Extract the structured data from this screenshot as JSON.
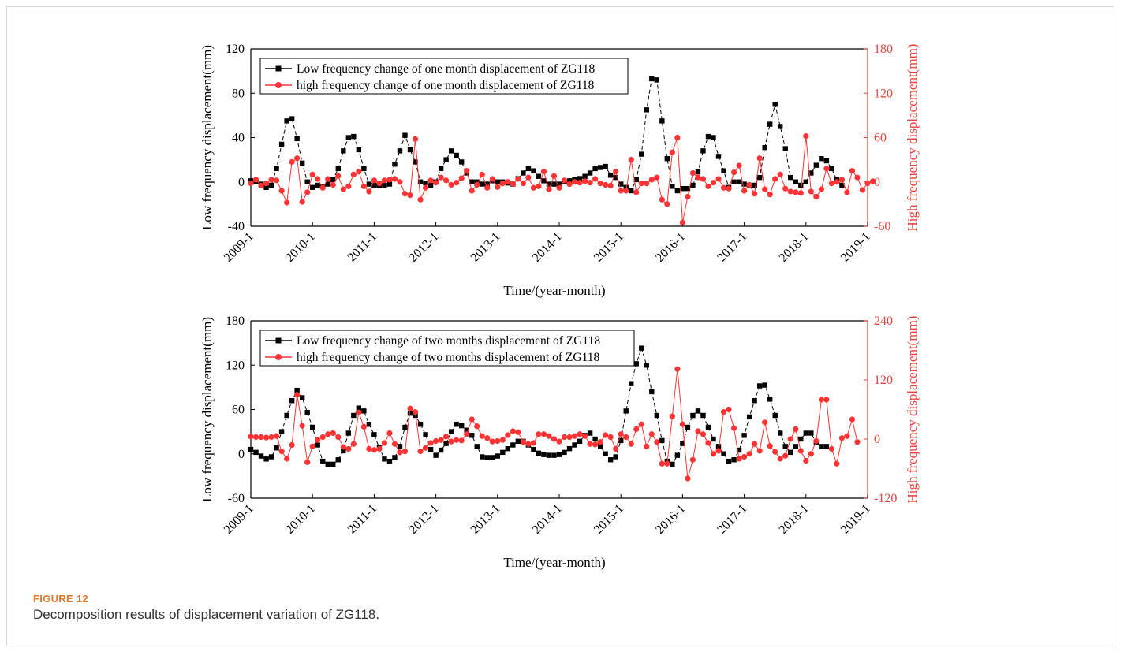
{
  "figure": {
    "label": "FIGURE 12",
    "caption": "Decomposition results of displacement variation of ZG118."
  },
  "colors": {
    "low": "#000000",
    "high": "#ff3333",
    "axis_right": "#e8443a"
  },
  "chart_data": [
    {
      "type": "line",
      "id": "one_month",
      "xlabel": "Time/(year-month)",
      "ylabel": "Low frequency displacement(mm)",
      "ylabel_right": "High frequency displacement(mm)",
      "ylim": [
        -40,
        120
      ],
      "yticks": [
        -40,
        0,
        40,
        80,
        120
      ],
      "ylim_right": [
        -60,
        180
      ],
      "yticks_right": [
        -60,
        0,
        60,
        120,
        180
      ],
      "xlim": [
        0,
        120
      ],
      "xticks": [
        0,
        12,
        24,
        36,
        48,
        60,
        72,
        84,
        96,
        108,
        120
      ],
      "xtick_labels": [
        "2009-1",
        "2010-1",
        "2011-1",
        "2012-1",
        "2013-1",
        "2014-1",
        "2015-1",
        "2016-1",
        "2017-1",
        "2018-1",
        "2019-1"
      ],
      "legend_position": "top-left",
      "series": [
        {
          "name": "Low frequency change of one month displacement of ZG118",
          "axis": "left",
          "marker": "square",
          "values": [
            1,
            0,
            -2,
            -5,
            -3,
            12,
            34,
            55,
            57,
            39,
            17,
            0,
            -5,
            -3,
            -4,
            -2,
            2,
            12,
            28,
            40,
            41,
            29,
            12,
            -2,
            -3,
            -3,
            -3,
            -2,
            16,
            28,
            42,
            29,
            18,
            0,
            -1,
            -3,
            0,
            12,
            20,
            28,
            24,
            18,
            8,
            0,
            0,
            -2,
            -2,
            1,
            0,
            0,
            -1,
            -2,
            3,
            8,
            12,
            10,
            5,
            1,
            -2,
            -2,
            -2,
            0,
            1,
            2,
            3,
            5,
            8,
            12,
            13,
            14,
            6,
            4,
            -2,
            -5,
            -8,
            2,
            25,
            65,
            93,
            92,
            55,
            21,
            -4,
            -8,
            -6,
            -6,
            -3,
            9,
            28,
            41,
            40,
            23,
            10,
            -5,
            0,
            0,
            -2,
            -3,
            -3,
            4,
            31,
            52,
            70,
            50,
            30,
            4,
            0,
            -3,
            0,
            8,
            15,
            21,
            19,
            12,
            2,
            -3
          ]
        },
        {
          "name": "high frequency change of one month displacement of ZG118",
          "axis": "right",
          "marker": "circle",
          "values": [
            -2,
            3,
            -5,
            -2,
            3,
            2,
            -12,
            -28,
            27,
            32,
            -27,
            -14,
            10,
            4,
            -8,
            4,
            -4,
            8,
            -10,
            -6,
            10,
            14,
            -6,
            -13,
            2,
            -2,
            2,
            3,
            4,
            0,
            -16,
            -18,
            58,
            -24,
            -8,
            2,
            -1,
            6,
            2,
            -4,
            -1,
            5,
            15,
            -12,
            -4,
            10,
            -8,
            4,
            -7,
            -2,
            0,
            -3,
            4,
            -2,
            6,
            -8,
            -6,
            14,
            -10,
            8,
            -8,
            2,
            -3,
            0,
            -1,
            1,
            -1,
            4,
            -2,
            -4,
            -5,
            14,
            -12,
            -12,
            30,
            -14,
            -2,
            -2,
            3,
            6,
            -24,
            -30,
            40,
            60,
            -55,
            -20,
            12,
            6,
            4,
            -6,
            -1,
            4,
            -8,
            -9,
            13,
            22,
            -12,
            -4,
            -16,
            32,
            -10,
            -17,
            4,
            10,
            -9,
            -13,
            -14,
            -15,
            62,
            -13,
            -20,
            -10,
            18,
            -2,
            0,
            3,
            -14,
            15,
            6,
            -11,
            -2,
            1
          ]
        }
      ]
    },
    {
      "type": "line",
      "id": "two_months",
      "xlabel": "Time/(year-month)",
      "ylabel": "Low frequency displacement(mm)",
      "ylabel_right": "High frequency displacement(mm)",
      "ylim": [
        -60,
        180
      ],
      "yticks": [
        -60,
        0,
        60,
        120,
        180
      ],
      "ylim_right": [
        -120,
        240
      ],
      "yticks_right": [
        -120,
        0,
        120,
        240
      ],
      "xlim": [
        0,
        120
      ],
      "xticks": [
        0,
        12,
        24,
        36,
        48,
        60,
        72,
        84,
        96,
        108,
        120
      ],
      "xtick_labels": [
        "2009-1",
        "2010-1",
        "2011-1",
        "2012-1",
        "2013-1",
        "2014-1",
        "2015-1",
        "2016-1",
        "2017-1",
        "2018-1",
        "2019-1"
      ],
      "legend_position": "top-left",
      "series": [
        {
          "name": "Low frequency change of two months displacement of ZG118",
          "axis": "left",
          "marker": "square",
          "values": [
            6,
            2,
            -3,
            -7,
            -4,
            8,
            30,
            52,
            72,
            86,
            76,
            56,
            36,
            12,
            -10,
            -14,
            -14,
            -8,
            4,
            28,
            52,
            62,
            58,
            40,
            26,
            8,
            -7,
            -10,
            -5,
            10,
            36,
            55,
            52,
            40,
            26,
            6,
            -2,
            5,
            14,
            30,
            40,
            38,
            32,
            25,
            10,
            -4,
            -5,
            -5,
            -3,
            2,
            7,
            12,
            17,
            17,
            12,
            6,
            1,
            -1,
            -2,
            -2,
            -1,
            2,
            7,
            12,
            17,
            25,
            28,
            20,
            10,
            0,
            -8,
            -4,
            18,
            58,
            95,
            122,
            143,
            120,
            84,
            52,
            18,
            -10,
            -14,
            -2,
            14,
            36,
            52,
            58,
            52,
            36,
            20,
            10,
            0,
            -10,
            -8,
            5,
            25,
            50,
            72,
            92,
            93,
            74,
            52,
            28,
            10,
            2,
            10,
            20,
            28,
            28,
            15,
            10,
            10
          ]
        },
        {
          "name": "high frequency change of two months displacement of ZG118",
          "axis": "right",
          "marker": "circle",
          "values": [
            5,
            4,
            4,
            3,
            4,
            6,
            -25,
            -40,
            -12,
            90,
            27,
            -47,
            -15,
            -2,
            4,
            10,
            12,
            4,
            -16,
            -20,
            -10,
            54,
            25,
            -20,
            -22,
            -20,
            -8,
            12,
            -10,
            -27,
            -25,
            62,
            55,
            -25,
            -18,
            -8,
            -4,
            -2,
            5,
            -5,
            -2,
            -3,
            10,
            40,
            26,
            6,
            2,
            -5,
            -4,
            -2,
            8,
            16,
            14,
            -6,
            -10,
            -8,
            10,
            10,
            6,
            0,
            -5,
            4,
            4,
            6,
            10,
            6,
            -10,
            -11,
            -6,
            8,
            4,
            -20,
            10,
            4,
            -10,
            20,
            30,
            -15,
            10,
            -6,
            -50,
            -50,
            46,
            142,
            30,
            -80,
            -42,
            16,
            10,
            -8,
            -30,
            -24,
            55,
            60,
            22,
            -40,
            -36,
            -30,
            -10,
            -24,
            34,
            -14,
            -26,
            -40,
            -34,
            0,
            20,
            -24,
            -44,
            -30,
            -4,
            80,
            80,
            -20,
            -50,
            2,
            6,
            40,
            -6
          ]
        }
      ]
    }
  ]
}
